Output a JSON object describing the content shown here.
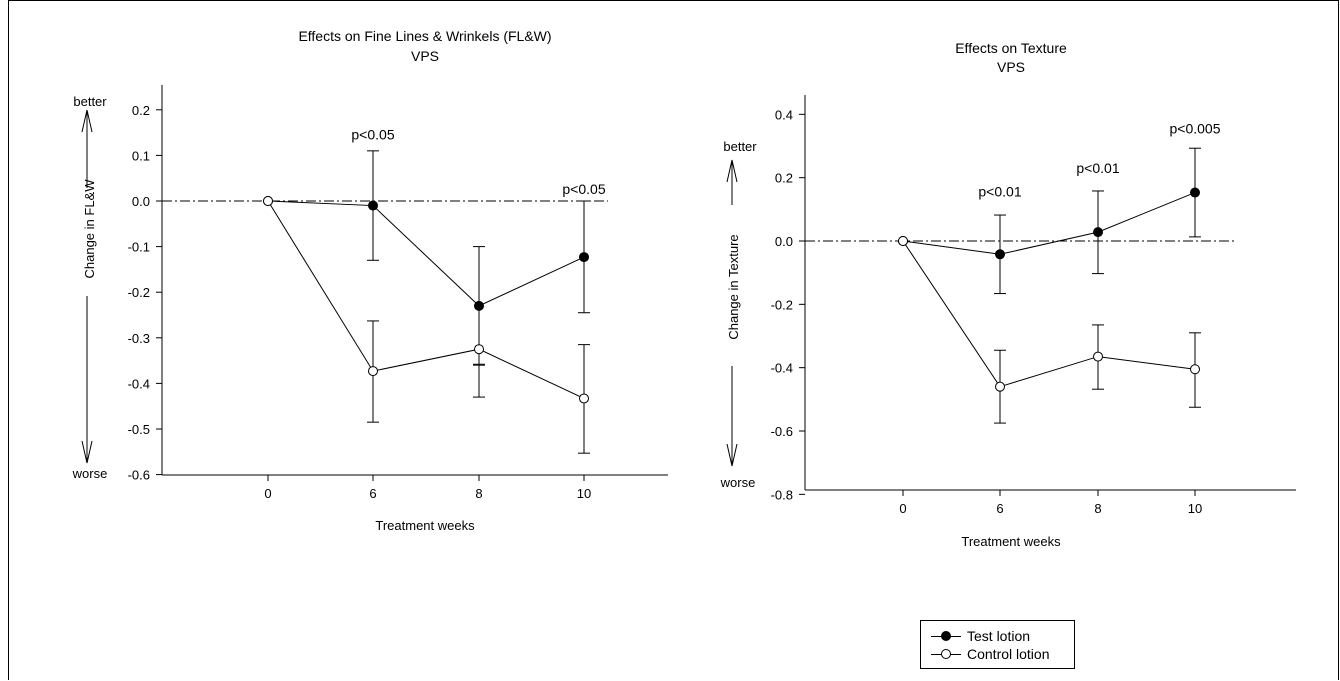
{
  "chart_data": [
    {
      "type": "line",
      "title": "Effects on Fine Lines & Wrinkels (FL&W)",
      "subtitle": "VPS",
      "xlabel": "Treatment weeks",
      "ylabel": "Change in FL&W",
      "top_label": "better",
      "bottom_label": "worse",
      "categories": [
        "0",
        "6",
        "8",
        "10"
      ],
      "x": [
        0,
        6,
        8,
        10
      ],
      "ylim": [
        -0.6,
        0.2
      ],
      "yticks": [
        "0.2",
        "0.1",
        "0.0",
        "-0.1",
        "-0.2",
        "-0.3",
        "-0.4",
        "-0.5",
        "-0.6"
      ],
      "series": [
        {
          "name": "Test lotion",
          "values": [
            0.0,
            -0.01,
            -0.23,
            -0.123
          ],
          "err_low": [
            0.0,
            -0.13,
            -0.36,
            -0.245
          ],
          "err_high": [
            0.0,
            0.11,
            -0.1,
            0.0
          ],
          "marker": "filled"
        },
        {
          "name": "Control lotion",
          "values": [
            0.0,
            -0.373,
            -0.325,
            -0.433
          ],
          "err_low": [
            0.0,
            -0.485,
            -0.43,
            -0.553
          ],
          "err_high": [
            0.0,
            -0.263,
            -0.358,
            -0.315
          ],
          "marker": "open"
        }
      ],
      "annotations": [
        {
          "text": "p<0.05",
          "x": 6,
          "y": 0.135
        },
        {
          "text": "p<0.05",
          "x": 10,
          "y": 0.015
        }
      ],
      "reference_line": 0.0
    },
    {
      "type": "line",
      "title": "Effects on Texture",
      "subtitle": "VPS",
      "xlabel": "Treatment weeks",
      "ylabel": "Change in Texture",
      "top_label": "better",
      "bottom_label": "worse",
      "categories": [
        "0",
        "6",
        "8",
        "10"
      ],
      "x": [
        0,
        6,
        8,
        10
      ],
      "ylim": [
        -0.8,
        0.4
      ],
      "yticks": [
        "0.4",
        "0.2",
        "0.0",
        "-0.2",
        "-0.4",
        "-0.6",
        "-0.8"
      ],
      "series": [
        {
          "name": "Test lotion",
          "values": [
            0.0,
            -0.042,
            0.028,
            0.153
          ],
          "err_low": [
            0.0,
            -0.166,
            -0.103,
            0.013
          ],
          "err_high": [
            0.0,
            0.082,
            0.158,
            0.293
          ],
          "marker": "filled"
        },
        {
          "name": "Control lotion",
          "values": [
            0.0,
            -0.46,
            -0.365,
            -0.405
          ],
          "err_low": [
            0.0,
            -0.575,
            -0.468,
            -0.525
          ],
          "err_high": [
            0.0,
            -0.345,
            -0.265,
            -0.29
          ],
          "marker": "open"
        }
      ],
      "annotations": [
        {
          "text": "p<0.01",
          "x": 6,
          "y": 0.14
        },
        {
          "text": "p<0.01",
          "x": 8,
          "y": 0.215
        },
        {
          "text": "p<0.005",
          "x": 10,
          "y": 0.34
        }
      ],
      "reference_line": 0.0
    }
  ],
  "legend": {
    "items": [
      {
        "label": "Test lotion",
        "marker": "filled"
      },
      {
        "label": "Control lotion",
        "marker": "open"
      }
    ]
  }
}
